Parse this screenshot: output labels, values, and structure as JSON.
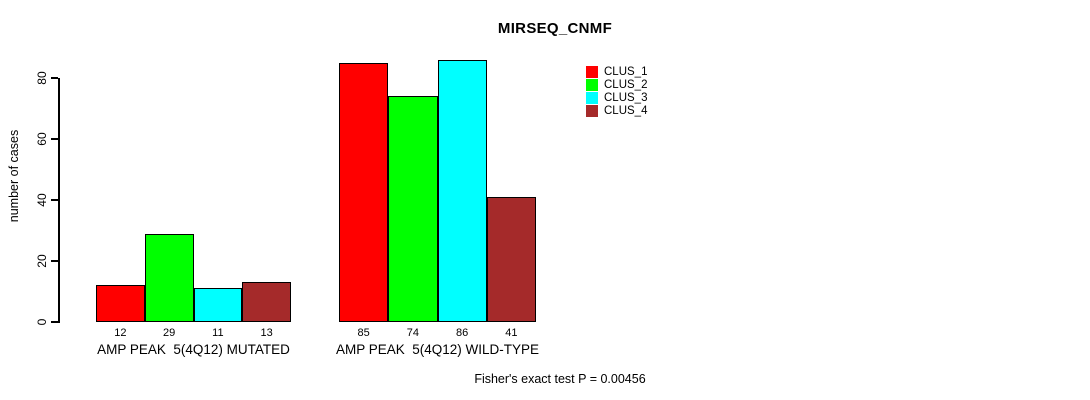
{
  "chart_data": {
    "type": "bar",
    "title": "MIRSEQ_CNMF",
    "ylabel": "number of cases",
    "xlabel": "",
    "categories": [
      "AMP PEAK  5(4Q12) MUTATED",
      "AMP PEAK  5(4Q12) WILD-TYPE"
    ],
    "series": [
      {
        "name": "CLUS_1",
        "color": "#ff0000",
        "values": [
          12,
          85
        ]
      },
      {
        "name": "CLUS_2",
        "color": "#00ff00",
        "values": [
          29,
          74
        ]
      },
      {
        "name": "CLUS_3",
        "color": "#00ffff",
        "values": [
          11,
          86
        ]
      },
      {
        "name": "CLUS_4",
        "color": "#a52a2a",
        "values": [
          13,
          41
        ]
      }
    ],
    "yticks": [
      0,
      20,
      40,
      60,
      80
    ],
    "ylim": [
      0,
      86
    ],
    "grid": false,
    "legend_position": "top-right-inside",
    "annotation": "Fisher's exact test P = 0.00456"
  }
}
